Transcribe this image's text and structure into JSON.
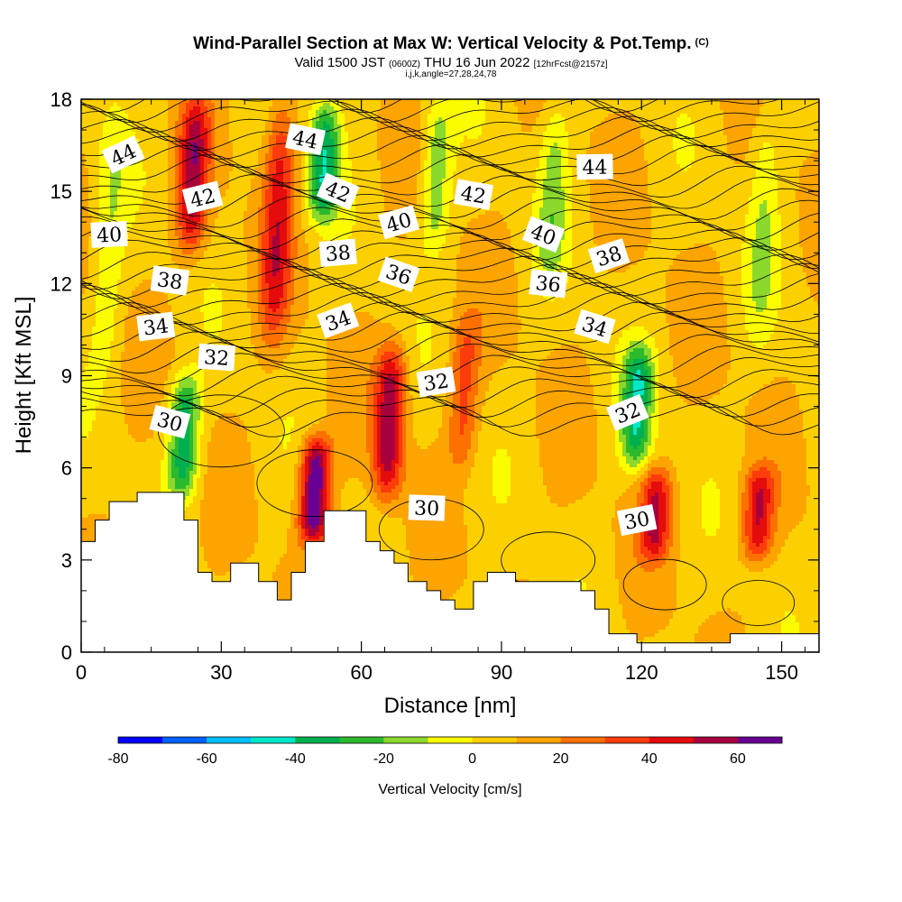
{
  "header": {
    "title": "Wind-Parallel Section at Max W: Vertical Velocity & Pot.Temp.",
    "copyright": "(C)",
    "valid_prefix": "Valid 1500 JST",
    "valid_utc": "(0600Z)",
    "valid_date": "THU 16 Jun 2022",
    "forecast": "[12hrFcst@2157z]",
    "section_params": "i,j,k,angle=27,28,24,78"
  },
  "colors": {
    "palette": [
      "#0000ff",
      "#0060ff",
      "#00c0ff",
      "#00e8c8",
      "#00b050",
      "#2cba2c",
      "#8cd82c",
      "#fcfc00",
      "#fcd000",
      "#fca400",
      "#fc7000",
      "#fc3c0c",
      "#e40c0c",
      "#a8003c",
      "#680094"
    ]
  },
  "chart_data": {
    "type": "heatmap",
    "title": "Wind-Parallel Section at Max W: Vertical Velocity & Pot.Temp.",
    "xlabel": "Distance [nm]",
    "ylabel": "Height [Kft MSL]",
    "xlim": [
      0,
      158
    ],
    "ylim": [
      0,
      18
    ],
    "xticks": [
      0,
      30,
      60,
      90,
      120,
      150
    ],
    "yticks": [
      0,
      3,
      6,
      9,
      12,
      15,
      18
    ],
    "colorbar": {
      "label": "Vertical Velocity [cm/s]",
      "levels": [
        -80,
        -70,
        -60,
        -50,
        -40,
        -30,
        -20,
        -10,
        0,
        10,
        20,
        30,
        40,
        50,
        60,
        70
      ],
      "tick_labels": [
        "-80",
        "-60",
        "-40",
        "-20",
        "0",
        "20",
        "40",
        "60"
      ],
      "tick_values": [
        -80,
        -60,
        -40,
        -20,
        0,
        20,
        40,
        60
      ]
    },
    "vertical_velocity_features": [
      {
        "x": 24,
        "y0": 13,
        "y1": 18,
        "value": 45
      },
      {
        "x": 42,
        "y0": 10,
        "y1": 18,
        "value": 35
      },
      {
        "x": 50,
        "y0": 3.5,
        "y1": 7,
        "value": 65
      },
      {
        "x": 66,
        "y0": 5,
        "y1": 10,
        "value": 50
      },
      {
        "x": 82,
        "y0": 6,
        "y1": 11,
        "value": 25
      },
      {
        "x": 123,
        "y0": 3,
        "y1": 6,
        "value": 40
      },
      {
        "x": 145,
        "y0": 3,
        "y1": 6,
        "value": 40
      },
      {
        "x": 6,
        "y0": 9,
        "y1": 18,
        "value": -15
      },
      {
        "x": 22,
        "y0": 5,
        "y1": 9,
        "value": -45
      },
      {
        "x": 52,
        "y0": 14,
        "y1": 18,
        "value": -45
      },
      {
        "x": 76,
        "y0": 13,
        "y1": 18,
        "value": -25
      },
      {
        "x": 101,
        "y0": 12,
        "y1": 18,
        "value": -20
      },
      {
        "x": 119,
        "y0": 6,
        "y1": 10,
        "value": -45
      },
      {
        "x": 146,
        "y0": 10,
        "y1": 18,
        "value": -15
      }
    ],
    "terrain": [
      [
        0,
        3.6
      ],
      [
        3,
        3.6
      ],
      [
        3,
        4.3
      ],
      [
        6,
        4.3
      ],
      [
        6,
        4.9
      ],
      [
        12,
        4.9
      ],
      [
        12,
        5.2
      ],
      [
        22,
        5.2
      ],
      [
        22,
        4.3
      ],
      [
        25,
        4.3
      ],
      [
        25,
        2.6
      ],
      [
        28,
        2.6
      ],
      [
        28,
        2.3
      ],
      [
        32,
        2.3
      ],
      [
        32,
        2.9
      ],
      [
        38,
        2.9
      ],
      [
        38,
        2.3
      ],
      [
        42,
        2.3
      ],
      [
        42,
        1.7
      ],
      [
        45,
        1.7
      ],
      [
        45,
        2.6
      ],
      [
        48,
        2.6
      ],
      [
        48,
        3.6
      ],
      [
        52,
        3.6
      ],
      [
        52,
        4.6
      ],
      [
        61,
        4.6
      ],
      [
        61,
        3.6
      ],
      [
        64,
        3.6
      ],
      [
        64,
        3.3
      ],
      [
        67,
        3.3
      ],
      [
        67,
        2.9
      ],
      [
        70,
        2.9
      ],
      [
        70,
        2.3
      ],
      [
        74,
        2.3
      ],
      [
        74,
        2.0
      ],
      [
        77,
        2.0
      ],
      [
        77,
        1.7
      ],
      [
        80,
        1.7
      ],
      [
        80,
        1.4
      ],
      [
        84,
        1.4
      ],
      [
        84,
        2.3
      ],
      [
        87,
        2.3
      ],
      [
        87,
        2.6
      ],
      [
        93,
        2.6
      ],
      [
        93,
        2.3
      ],
      [
        107,
        2.3
      ],
      [
        107,
        2.0
      ],
      [
        110,
        2.0
      ],
      [
        110,
        1.4
      ],
      [
        113,
        1.4
      ],
      [
        113,
        0.6
      ],
      [
        119,
        0.6
      ],
      [
        119,
        0.3
      ],
      [
        139,
        0.3
      ],
      [
        139,
        0.6
      ],
      [
        158,
        0.6
      ]
    ],
    "theta_contour_labels": [
      {
        "text": "44",
        "x": 9,
        "y": 16.2
      },
      {
        "text": "44",
        "x": 48,
        "y": 16.7
      },
      {
        "text": "44",
        "x": 110,
        "y": 15.8
      },
      {
        "text": "42",
        "x": 26,
        "y": 14.8
      },
      {
        "text": "42",
        "x": 55,
        "y": 15.0
      },
      {
        "text": "42",
        "x": 84,
        "y": 14.9
      },
      {
        "text": "40",
        "x": 6,
        "y": 13.6
      },
      {
        "text": "40",
        "x": 68,
        "y": 14.0
      },
      {
        "text": "40",
        "x": 99,
        "y": 13.6
      },
      {
        "text": "38",
        "x": 19,
        "y": 12.1
      },
      {
        "text": "38",
        "x": 55,
        "y": 13.0
      },
      {
        "text": "38",
        "x": 113,
        "y": 12.9
      },
      {
        "text": "36",
        "x": 68,
        "y": 12.3
      },
      {
        "text": "36",
        "x": 100,
        "y": 12.0
      },
      {
        "text": "34",
        "x": 16,
        "y": 10.6
      },
      {
        "text": "34",
        "x": 55,
        "y": 10.8
      },
      {
        "text": "34",
        "x": 110,
        "y": 10.6
      },
      {
        "text": "32",
        "x": 29,
        "y": 9.6
      },
      {
        "text": "32",
        "x": 76,
        "y": 8.8
      },
      {
        "text": "32",
        "x": 117,
        "y": 7.8
      },
      {
        "text": "30",
        "x": 19,
        "y": 7.5
      },
      {
        "text": "30",
        "x": 74,
        "y": 4.7
      },
      {
        "text": "30",
        "x": 119,
        "y": 4.3
      }
    ]
  }
}
